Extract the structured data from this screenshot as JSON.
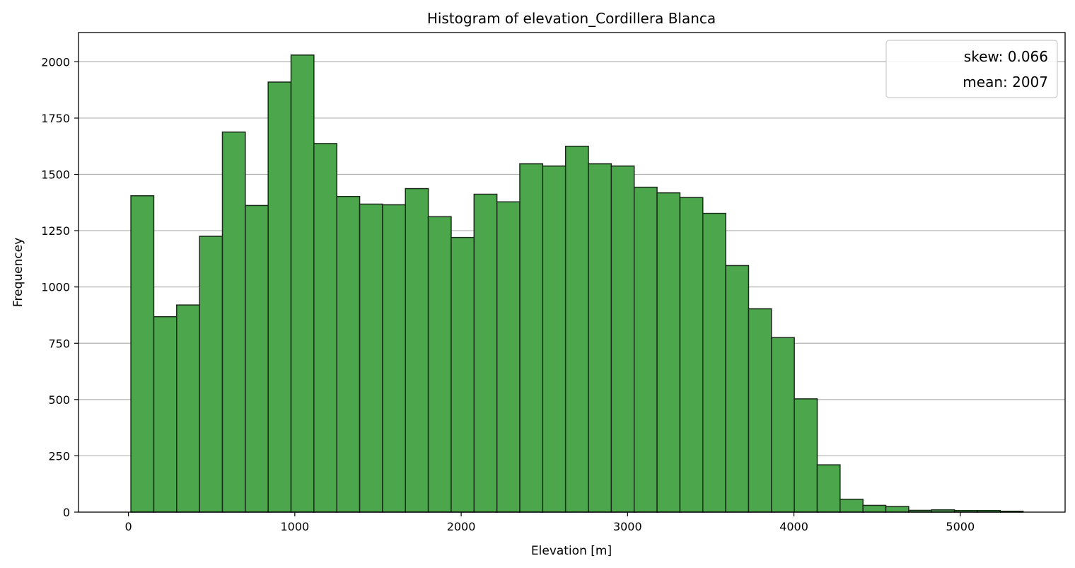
{
  "chart_data": {
    "type": "bar",
    "title": "Histogram of elevation_Cordillera Blanca",
    "xlabel": "Elevation [m]",
    "ylabel": "Frequencey",
    "xlim": [
      -300,
      5630
    ],
    "ylim": [
      0,
      2130
    ],
    "xticks": [
      0,
      1000,
      2000,
      3000,
      4000,
      5000
    ],
    "yticks": [
      0,
      250,
      500,
      750,
      1000,
      1250,
      1500,
      1750,
      2000
    ],
    "grid": "y",
    "bin_start": 15,
    "bin_width": 137.5,
    "values": [
      1405,
      868,
      920,
      1225,
      1688,
      1362,
      1910,
      2030,
      1637,
      1402,
      1368,
      1365,
      1437,
      1312,
      1220,
      1412,
      1378,
      1547,
      1537,
      1625,
      1547,
      1537,
      1443,
      1418,
      1397,
      1327,
      1095,
      903,
      775,
      503,
      210,
      57,
      30,
      25,
      8,
      10,
      7,
      7,
      4
    ],
    "bar_color": "#4ca64c",
    "edge_color": "#1a2b1a",
    "legend": {
      "position": "top-right",
      "entries": [
        "skew: 0.066",
        "mean: 2007"
      ]
    }
  }
}
